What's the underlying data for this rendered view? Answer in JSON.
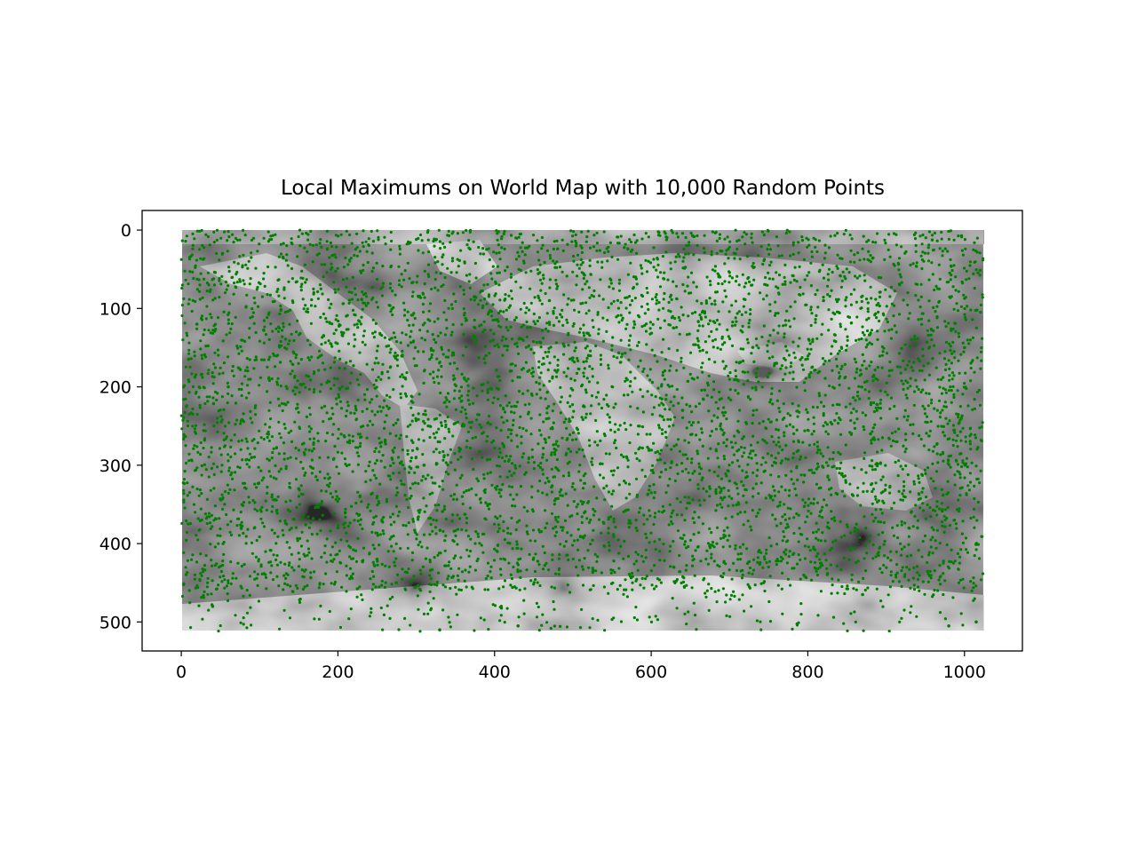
{
  "chart_data": {
    "type": "scatter",
    "title": "Local Maximums on World Map with 10,000 Random Points",
    "xlabel": "",
    "ylabel": "",
    "xlim": [
      -50,
      1074
    ],
    "ylim": [
      537,
      -25
    ],
    "y_axis_inverted": true,
    "x_ticks": [
      0,
      200,
      400,
      600,
      800,
      1000
    ],
    "x_tick_labels": [
      "0",
      "200",
      "400",
      "600",
      "800",
      "1000"
    ],
    "y_ticks": [
      0,
      100,
      200,
      300,
      400,
      500
    ],
    "y_tick_labels": [
      "0",
      "100",
      "200",
      "300",
      "400",
      "500"
    ],
    "grid": false,
    "legend": "none",
    "background_image": {
      "description": "grayscale world map",
      "extent_x": [
        0,
        1024
      ],
      "extent_y": [
        0,
        512
      ]
    },
    "series": [
      {
        "marker_color": "#008000",
        "marker": "circle",
        "approximate_point_count": 10000,
        "sample_points": [
          [
            20,
            120
          ],
          [
            60,
            200
          ],
          [
            110,
            260
          ],
          [
            150,
            330
          ],
          [
            200,
            380
          ],
          [
            250,
            420
          ],
          [
            310,
            300
          ],
          [
            360,
            250
          ],
          [
            420,
            180
          ],
          [
            470,
            90
          ],
          [
            520,
            160
          ],
          [
            580,
            60
          ],
          [
            640,
            230
          ],
          [
            700,
            320
          ],
          [
            760,
            170
          ],
          [
            820,
            90
          ],
          [
            880,
            260
          ],
          [
            940,
            380
          ],
          [
            1000,
            150
          ],
          [
            1015,
            500
          ],
          [
            40,
            480
          ],
          [
            330,
            510
          ],
          [
            430,
            505
          ],
          [
            870,
            465
          ],
          [
            980,
            505
          ]
        ]
      }
    ]
  }
}
